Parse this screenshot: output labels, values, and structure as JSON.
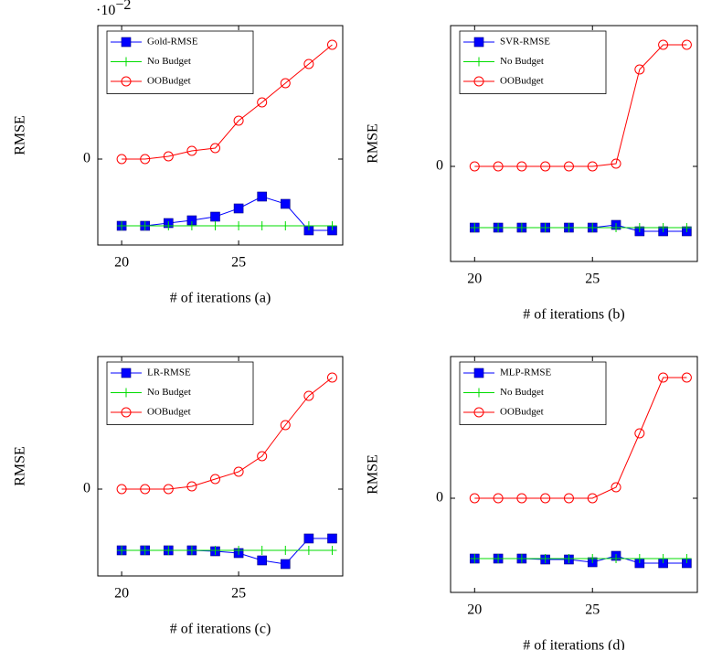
{
  "chart_data": [
    {
      "type": "line",
      "x_label": "# of iterations (a)",
      "y_label": "RMSE",
      "y_multiplier": "·10",
      "y_multiplier_exponent": "−2",
      "x": [
        20,
        21,
        22,
        23,
        24,
        25,
        26,
        27,
        28,
        29
      ],
      "xlim": [
        18.98,
        29.45
      ],
      "xticks": [
        20,
        25
      ],
      "ylim": [
        -1.88,
        2.92
      ],
      "yticks": [
        0
      ],
      "legend": "north west",
      "series": [
        {
          "name": "Gold-RMSE",
          "color": "#0000ff",
          "marker": "square",
          "values": [
            -1.46,
            -1.46,
            -1.4,
            -1.34,
            -1.26,
            -1.08,
            -0.82,
            -0.98,
            -1.56,
            -1.56
          ]
        },
        {
          "name": "No Budget",
          "color": "#00dd00",
          "marker": "plus",
          "values": [
            -1.46,
            -1.46,
            -1.46,
            -1.46,
            -1.46,
            -1.46,
            -1.46,
            -1.46,
            -1.46,
            -1.46
          ]
        },
        {
          "name": "OOBudget",
          "color": "#ff0000",
          "marker": "circle",
          "values": [
            0,
            0,
            0.06,
            0.18,
            0.24,
            0.84,
            1.24,
            1.66,
            2.08,
            2.5
          ]
        }
      ]
    },
    {
      "type": "line",
      "x_label": "# of iterations (b)",
      "y_label": "RMSE",
      "x": [
        20,
        21,
        22,
        23,
        24,
        25,
        26,
        27,
        28,
        29
      ],
      "xlim": [
        18.98,
        29.45
      ],
      "xticks": [
        20,
        25
      ],
      "ylim": [
        -2.08,
        3.08
      ],
      "yticks": [
        0
      ],
      "legend": "north west",
      "series": [
        {
          "name": "SVR-RMSE",
          "color": "#0000ff",
          "marker": "square",
          "values": [
            -1.34,
            -1.34,
            -1.34,
            -1.34,
            -1.34,
            -1.34,
            -1.28,
            -1.42,
            -1.42,
            -1.42
          ]
        },
        {
          "name": "No Budget",
          "color": "#00dd00",
          "marker": "plus",
          "values": [
            -1.34,
            -1.34,
            -1.34,
            -1.34,
            -1.34,
            -1.34,
            -1.34,
            -1.34,
            -1.34,
            -1.34
          ]
        },
        {
          "name": "OOBudget",
          "color": "#ff0000",
          "marker": "circle",
          "values": [
            0,
            0,
            0,
            0,
            0,
            0,
            0.06,
            2.12,
            2.66,
            2.66
          ]
        }
      ]
    },
    {
      "type": "line",
      "x_label": "# of iterations (c)",
      "y_label": "RMSE",
      "x": [
        20,
        21,
        22,
        23,
        24,
        25,
        26,
        27,
        28,
        29
      ],
      "xlim": [
        18.98,
        29.45
      ],
      "xticks": [
        20,
        25
      ],
      "ylim": [
        -1.9,
        2.9
      ],
      "yticks": [
        0
      ],
      "legend": "north west",
      "series": [
        {
          "name": "LR-RMSE",
          "color": "#0000ff",
          "marker": "square",
          "values": [
            -1.34,
            -1.34,
            -1.34,
            -1.34,
            -1.36,
            -1.4,
            -1.56,
            -1.64,
            -1.08,
            -1.08
          ]
        },
        {
          "name": "No Budget",
          "color": "#00dd00",
          "marker": "plus",
          "values": [
            -1.34,
            -1.34,
            -1.34,
            -1.34,
            -1.34,
            -1.34,
            -1.34,
            -1.34,
            -1.34,
            -1.34
          ]
        },
        {
          "name": "OOBudget",
          "color": "#ff0000",
          "marker": "circle",
          "values": [
            0,
            0,
            0,
            0.06,
            0.22,
            0.38,
            0.72,
            1.4,
            2.04,
            2.44
          ]
        }
      ]
    },
    {
      "type": "line",
      "x_label": "# of iterations (d)",
      "y_label": "RMSE",
      "x": [
        20,
        21,
        22,
        23,
        24,
        25,
        26,
        27,
        28,
        29
      ],
      "xlim": [
        18.98,
        29.45
      ],
      "xticks": [
        20,
        25
      ],
      "ylim": [
        -2.06,
        3.1
      ],
      "yticks": [
        0
      ],
      "legend": "north west",
      "series": [
        {
          "name": "MLP-RMSE",
          "color": "#0000ff",
          "marker": "square",
          "values": [
            -1.32,
            -1.32,
            -1.32,
            -1.34,
            -1.34,
            -1.4,
            -1.26,
            -1.42,
            -1.42,
            -1.42
          ]
        },
        {
          "name": "No Budget",
          "color": "#00dd00",
          "marker": "plus",
          "values": [
            -1.32,
            -1.32,
            -1.32,
            -1.32,
            -1.32,
            -1.32,
            -1.32,
            -1.32,
            -1.32,
            -1.32
          ]
        },
        {
          "name": "OOBudget",
          "color": "#ff0000",
          "marker": "circle",
          "values": [
            0,
            0,
            0,
            0,
            0,
            0,
            0.24,
            1.42,
            2.64,
            2.64
          ]
        }
      ]
    }
  ]
}
